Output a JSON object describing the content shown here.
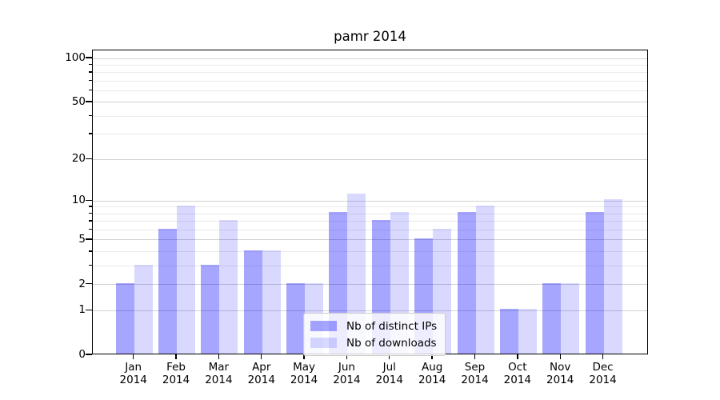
{
  "chart_data": {
    "type": "bar",
    "title": "pamr 2014",
    "categories": [
      "Jan",
      "Feb",
      "Mar",
      "Apr",
      "May",
      "Jun",
      "Jul",
      "Aug",
      "Sep",
      "Oct",
      "Nov",
      "Dec"
    ],
    "x_year": "2014",
    "series": [
      {
        "name": "Nb of distinct IPs",
        "color": "rgba(0,0,255,0.35)",
        "color_hex_on_white": "#a6a6ff",
        "values": [
          2,
          6,
          3,
          4,
          2,
          8,
          7,
          5,
          8,
          1,
          2,
          8
        ]
      },
      {
        "name": "Nb of downloads",
        "color": "rgba(0,0,255,0.15)",
        "color_hex_on_white": "#d9d9ff",
        "values": [
          3,
          9,
          7,
          4,
          2,
          11,
          8,
          6,
          9,
          1,
          2,
          10
        ]
      }
    ],
    "y_scale": "log1p",
    "y_major_ticks": [
      0,
      1,
      2,
      5,
      10,
      20,
      50,
      100
    ],
    "y_minor_ticks": [
      3,
      4,
      6,
      7,
      8,
      9,
      30,
      40,
      60,
      70,
      80,
      90
    ],
    "ylim": [
      0,
      113
    ],
    "grid": "horizontal",
    "legend_position": "lower-center-inside"
  },
  "colors": {
    "grid_major": "#d2d2d2",
    "grid_minor": "#eaeaea",
    "spine": "#000000",
    "text": "#000000"
  }
}
